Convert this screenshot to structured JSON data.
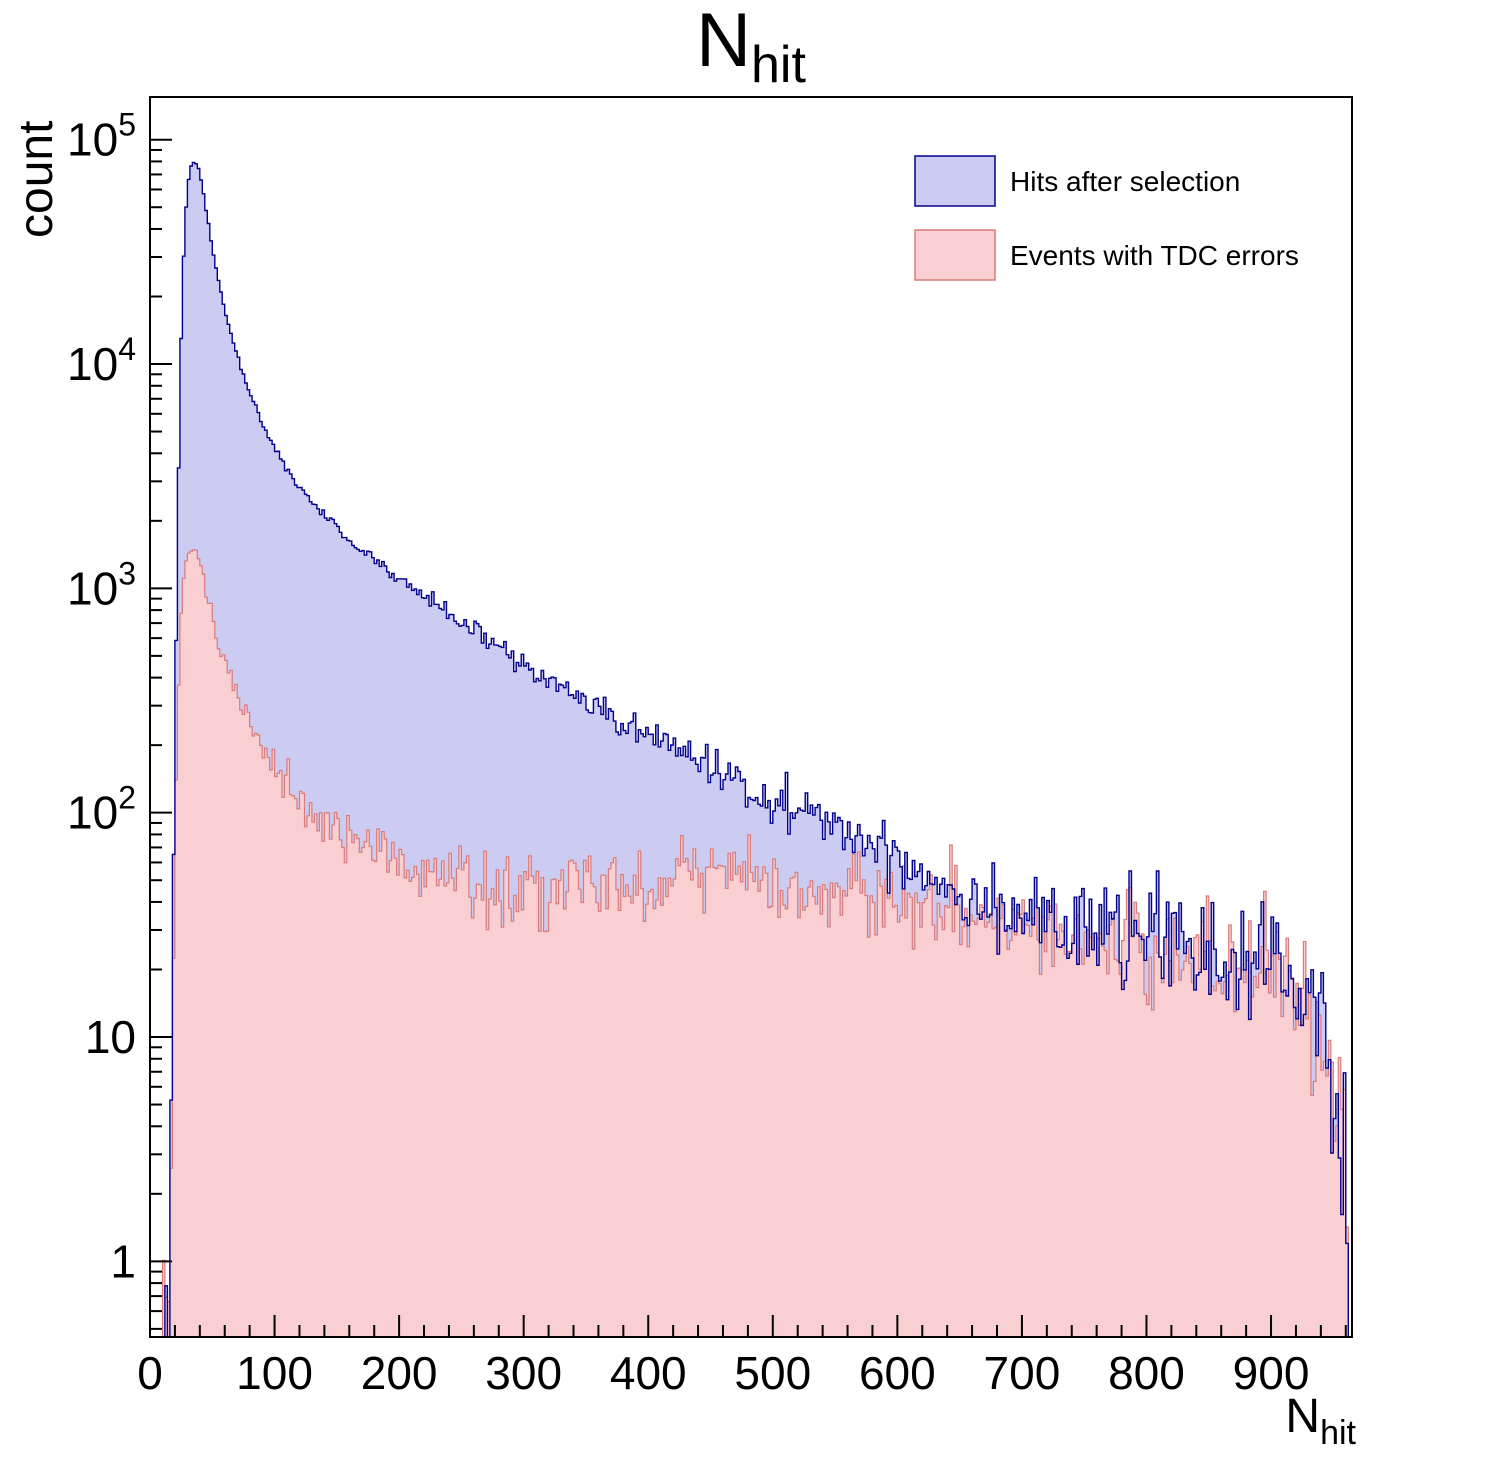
{
  "chart_data": {
    "type": "histogram",
    "title": {
      "main": "N",
      "sub": "hit"
    },
    "ylabel": "count",
    "xlabel": {
      "main": "N",
      "sub": "hit"
    },
    "y_scale": "log",
    "x_range": [
      0,
      965
    ],
    "y_range": [
      0.46,
      155000
    ],
    "x_major_ticks": [
      0,
      100,
      200,
      300,
      400,
      500,
      600,
      700,
      800,
      900
    ],
    "x_minor_step": 20,
    "y_major_decades": [
      0,
      1,
      2,
      3,
      4,
      5
    ],
    "bin_width": 2,
    "grid": false,
    "legend": {
      "position": "top-right",
      "items": [
        {
          "label": "Hits after selection",
          "fill": "#ccccf2",
          "line": "#00008b"
        },
        {
          "label": "Events with TDC errors",
          "fill": "#f9cfd1",
          "line": "#d97b7b"
        }
      ]
    },
    "series": [
      {
        "name": "Hits after selection",
        "fill": "#ccccf2",
        "line": "#00008b",
        "line_width": 1.4,
        "seed": 42,
        "noise": 1.3,
        "anchors": [
          [
            10,
            0
          ],
          [
            13,
            1
          ],
          [
            16,
            3
          ],
          [
            18,
            25
          ],
          [
            20,
            200
          ],
          [
            22,
            1500
          ],
          [
            24,
            8000
          ],
          [
            26,
            22000
          ],
          [
            28,
            42000
          ],
          [
            30,
            62000
          ],
          [
            33,
            76000
          ],
          [
            36,
            80000
          ],
          [
            39,
            74000
          ],
          [
            42,
            62000
          ],
          [
            46,
            45000
          ],
          [
            50,
            33000
          ],
          [
            55,
            23500
          ],
          [
            60,
            17500
          ],
          [
            66,
            13000
          ],
          [
            72,
            10000
          ],
          [
            80,
            7400
          ],
          [
            88,
            5800
          ],
          [
            96,
            4700
          ],
          [
            105,
            3800
          ],
          [
            115,
            3100
          ],
          [
            125,
            2600
          ],
          [
            140,
            2100
          ],
          [
            155,
            1750
          ],
          [
            170,
            1480
          ],
          [
            185,
            1280
          ],
          [
            200,
            1100
          ],
          [
            220,
            920
          ],
          [
            240,
            780
          ],
          [
            260,
            650
          ],
          [
            280,
            545
          ],
          [
            300,
            455
          ],
          [
            320,
            385
          ],
          [
            340,
            330
          ],
          [
            360,
            285
          ],
          [
            380,
            250
          ],
          [
            400,
            220
          ],
          [
            420,
            195
          ],
          [
            440,
            172
          ],
          [
            460,
            152
          ],
          [
            480,
            133
          ],
          [
            500,
            117
          ],
          [
            520,
            103
          ],
          [
            540,
            92
          ],
          [
            560,
            82
          ],
          [
            580,
            72
          ],
          [
            600,
            63
          ],
          [
            620,
            55
          ],
          [
            640,
            48
          ],
          [
            660,
            43
          ],
          [
            680,
            39
          ],
          [
            700,
            36
          ],
          [
            720,
            33
          ],
          [
            740,
            31
          ],
          [
            760,
            29
          ],
          [
            780,
            28
          ],
          [
            800,
            27
          ],
          [
            820,
            26
          ],
          [
            840,
            24
          ],
          [
            860,
            23
          ],
          [
            880,
            22
          ],
          [
            900,
            21
          ],
          [
            915,
            19
          ],
          [
            930,
            15
          ],
          [
            940,
            11
          ],
          [
            948,
            7
          ],
          [
            953,
            4
          ],
          [
            958,
            2
          ],
          [
            962,
            1
          ]
        ]
      },
      {
        "name": "Events with TDC errors",
        "fill": "#f9cfd1",
        "line": "#d97b7b",
        "line_width": 1.2,
        "seed": 1337,
        "noise": 1.3,
        "anchors": [
          [
            10,
            0
          ],
          [
            13,
            1
          ],
          [
            16,
            2
          ],
          [
            18,
            12
          ],
          [
            20,
            70
          ],
          [
            22,
            260
          ],
          [
            24,
            600
          ],
          [
            26,
            950
          ],
          [
            28,
            1200
          ],
          [
            30,
            1380
          ],
          [
            33,
            1480
          ],
          [
            36,
            1500
          ],
          [
            39,
            1400
          ],
          [
            42,
            1200
          ],
          [
            46,
            950
          ],
          [
            50,
            750
          ],
          [
            55,
            580
          ],
          [
            60,
            470
          ],
          [
            66,
            380
          ],
          [
            72,
            320
          ],
          [
            80,
            255
          ],
          [
            88,
            210
          ],
          [
            96,
            175
          ],
          [
            105,
            148
          ],
          [
            115,
            125
          ],
          [
            125,
            108
          ],
          [
            140,
            92
          ],
          [
            155,
            80
          ],
          [
            170,
            72
          ],
          [
            185,
            65
          ],
          [
            200,
            60
          ],
          [
            220,
            55
          ],
          [
            240,
            52
          ],
          [
            260,
            50
          ],
          [
            280,
            48
          ],
          [
            300,
            47
          ],
          [
            320,
            46
          ],
          [
            340,
            46
          ],
          [
            360,
            46
          ],
          [
            380,
            47
          ],
          [
            400,
            48
          ],
          [
            420,
            49
          ],
          [
            440,
            51
          ],
          [
            460,
            52
          ],
          [
            480,
            51
          ],
          [
            500,
            49
          ],
          [
            520,
            47
          ],
          [
            540,
            45
          ],
          [
            560,
            43
          ],
          [
            580,
            41
          ],
          [
            600,
            40
          ],
          [
            620,
            38
          ],
          [
            640,
            36
          ],
          [
            660,
            35
          ],
          [
            680,
            33
          ],
          [
            700,
            31
          ],
          [
            720,
            30
          ],
          [
            740,
            28
          ],
          [
            760,
            27
          ],
          [
            780,
            26
          ],
          [
            800,
            25
          ],
          [
            820,
            24
          ],
          [
            840,
            23
          ],
          [
            860,
            22
          ],
          [
            880,
            21
          ],
          [
            900,
            20
          ],
          [
            915,
            18
          ],
          [
            930,
            14
          ],
          [
            940,
            10
          ],
          [
            948,
            6
          ],
          [
            953,
            4
          ],
          [
            958,
            2
          ],
          [
            962,
            1
          ]
        ]
      }
    ]
  }
}
